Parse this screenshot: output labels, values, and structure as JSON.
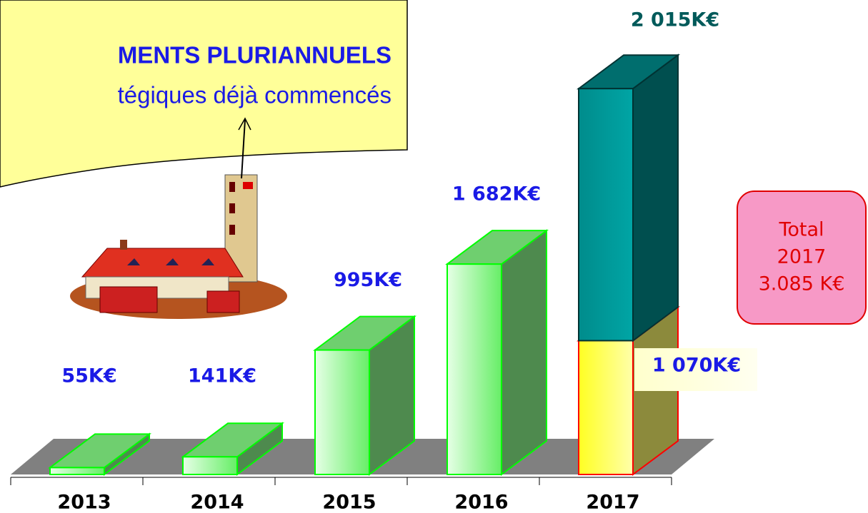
{
  "chart_data": {
    "type": "bar3d-stacked",
    "callout": [
      "MENTS PLURIANNUELS",
      "tégiques déjà commencés"
    ],
    "categories": [
      "2013",
      "2014",
      "2015",
      "2016",
      "2017"
    ],
    "series": [
      {
        "colors": [
          "#33ff33",
          "#33ff33",
          "#33ff33",
          "#33ff33",
          "#ffff33"
        ],
        "values": [
          55,
          141,
          995,
          1682,
          1070
        ],
        "value_labels": [
          "55K€",
          "141K€",
          "995K€",
          "1 682K€",
          "1 070K€"
        ]
      },
      {
        "color": "#009999",
        "values": [
          null,
          null,
          null,
          null,
          2015
        ],
        "value_labels": [
          null,
          null,
          null,
          null,
          "2 015K€"
        ]
      }
    ],
    "total_box": [
      "Total",
      "2017",
      "3.085 K€"
    ]
  }
}
